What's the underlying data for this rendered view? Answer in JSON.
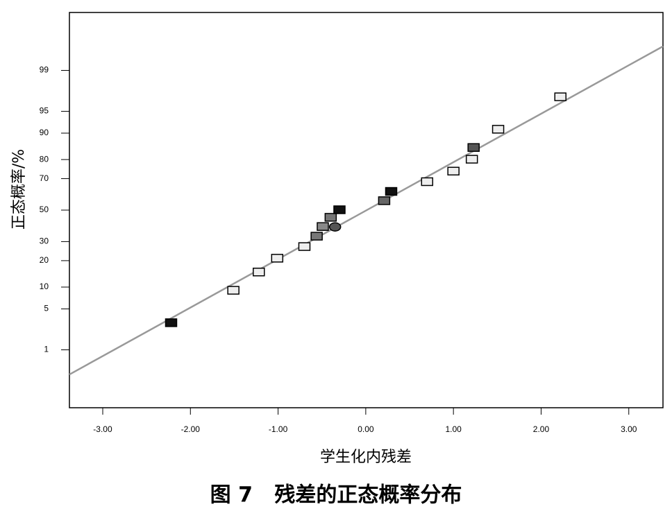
{
  "chart_data": {
    "type": "normal-probability",
    "x_label": "学生化内残差",
    "y_label": "正态概率/%",
    "caption": "图 7   残差的正态概率分布",
    "xlim": [
      -3.38,
      3.39
    ],
    "xticks": [
      {
        "value": -3,
        "label": "-3.00"
      },
      {
        "value": -2,
        "label": "-2.00"
      },
      {
        "value": -1,
        "label": "-1.00"
      },
      {
        "value": 0,
        "label": "0.00"
      },
      {
        "value": 1,
        "label": "1.00"
      },
      {
        "value": 2,
        "label": "2.00"
      },
      {
        "value": 3,
        "label": "3.00"
      }
    ],
    "ylim": [
      0.05,
      99.95
    ],
    "yticks": [
      1,
      5,
      10,
      20,
      30,
      50,
      70,
      80,
      90,
      95,
      99
    ],
    "x": [
      -2.22,
      -1.51,
      -1.22,
      -1.01,
      -0.7,
      -0.56,
      -0.49,
      -0.35,
      -0.4,
      -0.3,
      0.21,
      0.29,
      0.7,
      1.0,
      1.21,
      1.23,
      1.51,
      2.22
    ],
    "values": [
      3,
      9,
      15,
      21,
      27,
      33,
      39,
      39,
      45,
      50,
      56,
      62,
      68,
      74,
      80,
      85,
      91,
      97
    ],
    "colors": [
      "#111111",
      "#eeeeee",
      "#eeeeee",
      "#eeeeee",
      "#eeeeee",
      "#777777",
      "#888888",
      "#555555",
      "#777777",
      "#111111",
      "#666666",
      "#111111",
      "#eeeeee",
      "#eeeeee",
      "#eeeeee",
      "#555555",
      "#eeeeee",
      "#eeeeee"
    ],
    "markers": [
      "square",
      "square",
      "square",
      "square",
      "square",
      "square",
      "square",
      "circle",
      "square",
      "square",
      "square",
      "square",
      "square",
      "square",
      "square",
      "square",
      "square",
      "square"
    ],
    "fit_line": {
      "x": [
        -3.38,
        3.39
      ],
      "y": [
        0.31,
        99.68
      ],
      "color": "#999999"
    }
  }
}
